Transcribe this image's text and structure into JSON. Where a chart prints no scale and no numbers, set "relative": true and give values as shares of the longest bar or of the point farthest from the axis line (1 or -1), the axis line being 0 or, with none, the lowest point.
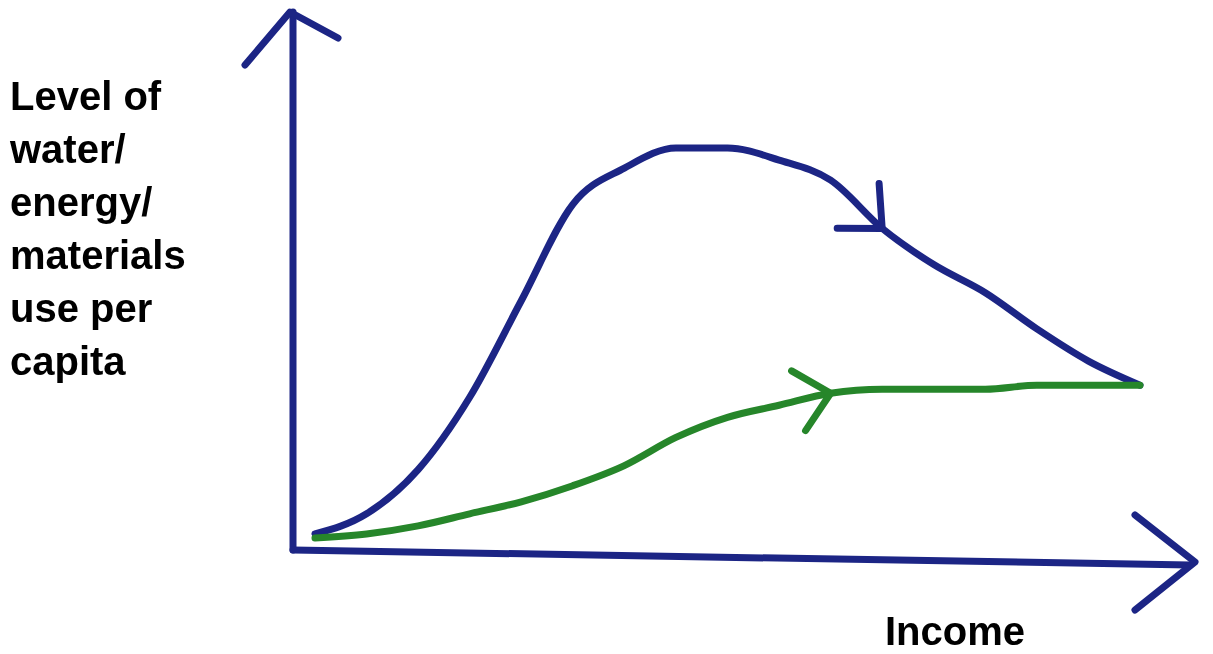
{
  "chart_data": {
    "type": "line",
    "relative": true,
    "xlabel": "Income",
    "ylabel": "Level of water/ energy/ materials use per capita",
    "categories": [
      null,
      null,
      null,
      null,
      null,
      null,
      null,
      null,
      null,
      null,
      null,
      null,
      null,
      null,
      null,
      null,
      null
    ],
    "grid": false,
    "marker": "none",
    "line_style": "solid",
    "series": [
      {
        "color": "#1c2585",
        "values": [
          0.04,
          0.09,
          0.2,
          0.38,
          0.62,
          0.86,
          0.95,
          1.0,
          1.0,
          0.97,
          0.92,
          0.8,
          0.71,
          0.64,
          0.55,
          0.47,
          0.41
        ]
      },
      {
        "color": "#26862a",
        "values": [
          0.03,
          0.04,
          0.06,
          0.09,
          0.12,
          0.16,
          0.21,
          0.28,
          0.33,
          0.36,
          0.39,
          0.4,
          0.4,
          0.4,
          0.41,
          0.41,
          0.41
        ]
      }
    ]
  }
}
